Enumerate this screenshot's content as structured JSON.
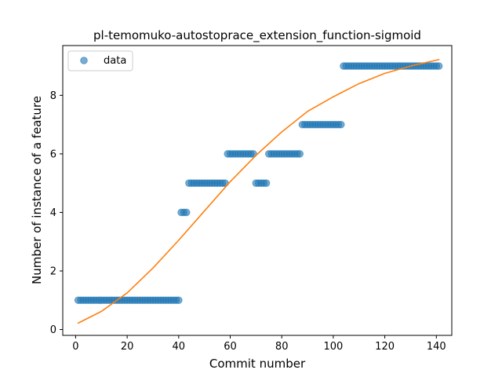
{
  "chart_data": {
    "type": "scatter",
    "title": "pl-temomuko-autostoprace_extension_function-sigmoid",
    "xlabel": "Commit number",
    "ylabel": "Number of instance of a feature",
    "xlim": [
      -5,
      146
    ],
    "ylim": [
      -0.2,
      9.7
    ],
    "x_ticks": [
      "0",
      "20",
      "40",
      "60",
      "80",
      "100",
      "120",
      "140"
    ],
    "y_ticks": [
      "0",
      "2",
      "4",
      "6",
      "8"
    ],
    "grid": false,
    "legend_position": "top-left",
    "legend": [
      {
        "label": "data",
        "color": "#1f77b4",
        "marker": "circle"
      }
    ],
    "series": [
      {
        "name": "data",
        "kind": "scatter",
        "color": "#1f77b4",
        "points": [
          [
            1,
            1
          ],
          [
            2,
            1
          ],
          [
            3,
            1
          ],
          [
            4,
            1
          ],
          [
            5,
            1
          ],
          [
            6,
            1
          ],
          [
            7,
            1
          ],
          [
            8,
            1
          ],
          [
            9,
            1
          ],
          [
            10,
            1
          ],
          [
            11,
            1
          ],
          [
            12,
            1
          ],
          [
            13,
            1
          ],
          [
            14,
            1
          ],
          [
            15,
            1
          ],
          [
            16,
            1
          ],
          [
            17,
            1
          ],
          [
            18,
            1
          ],
          [
            19,
            1
          ],
          [
            20,
            1
          ],
          [
            21,
            1
          ],
          [
            22,
            1
          ],
          [
            23,
            1
          ],
          [
            24,
            1
          ],
          [
            25,
            1
          ],
          [
            26,
            1
          ],
          [
            27,
            1
          ],
          [
            28,
            1
          ],
          [
            29,
            1
          ],
          [
            30,
            1
          ],
          [
            31,
            1
          ],
          [
            32,
            1
          ],
          [
            33,
            1
          ],
          [
            34,
            1
          ],
          [
            35,
            1
          ],
          [
            36,
            1
          ],
          [
            37,
            1
          ],
          [
            38,
            1
          ],
          [
            39,
            1
          ],
          [
            40,
            1
          ],
          [
            41,
            4
          ],
          [
            42,
            4
          ],
          [
            43,
            4
          ],
          [
            44,
            5
          ],
          [
            45,
            5
          ],
          [
            46,
            5
          ],
          [
            47,
            5
          ],
          [
            48,
            5
          ],
          [
            49,
            5
          ],
          [
            50,
            5
          ],
          [
            51,
            5
          ],
          [
            52,
            5
          ],
          [
            53,
            5
          ],
          [
            54,
            5
          ],
          [
            55,
            5
          ],
          [
            56,
            5
          ],
          [
            57,
            5
          ],
          [
            58,
            5
          ],
          [
            59,
            6
          ],
          [
            60,
            6
          ],
          [
            61,
            6
          ],
          [
            62,
            6
          ],
          [
            63,
            6
          ],
          [
            64,
            6
          ],
          [
            65,
            6
          ],
          [
            66,
            6
          ],
          [
            67,
            6
          ],
          [
            68,
            6
          ],
          [
            69,
            6
          ],
          [
            70,
            5
          ],
          [
            71,
            5
          ],
          [
            72,
            5
          ],
          [
            73,
            5
          ],
          [
            74,
            5
          ],
          [
            75,
            6
          ],
          [
            76,
            6
          ],
          [
            77,
            6
          ],
          [
            78,
            6
          ],
          [
            79,
            6
          ],
          [
            80,
            6
          ],
          [
            81,
            6
          ],
          [
            82,
            6
          ],
          [
            83,
            6
          ],
          [
            84,
            6
          ],
          [
            85,
            6
          ],
          [
            86,
            6
          ],
          [
            87,
            6
          ],
          [
            88,
            7
          ],
          [
            89,
            7
          ],
          [
            90,
            7
          ],
          [
            91,
            7
          ],
          [
            92,
            7
          ],
          [
            93,
            7
          ],
          [
            94,
            7
          ],
          [
            95,
            7
          ],
          [
            96,
            7
          ],
          [
            97,
            7
          ],
          [
            98,
            7
          ],
          [
            99,
            7
          ],
          [
            100,
            7
          ],
          [
            101,
            7
          ],
          [
            102,
            7
          ],
          [
            103,
            7
          ],
          [
            104,
            9
          ],
          [
            105,
            9
          ],
          [
            106,
            9
          ],
          [
            107,
            9
          ],
          [
            108,
            9
          ],
          [
            109,
            9
          ],
          [
            110,
            9
          ],
          [
            111,
            9
          ],
          [
            112,
            9
          ],
          [
            113,
            9
          ],
          [
            114,
            9
          ],
          [
            115,
            9
          ],
          [
            116,
            9
          ],
          [
            117,
            9
          ],
          [
            118,
            9
          ],
          [
            119,
            9
          ],
          [
            120,
            9
          ],
          [
            121,
            9
          ],
          [
            122,
            9
          ],
          [
            123,
            9
          ],
          [
            124,
            9
          ],
          [
            125,
            9
          ],
          [
            126,
            9
          ],
          [
            127,
            9
          ],
          [
            128,
            9
          ],
          [
            129,
            9
          ],
          [
            130,
            9
          ],
          [
            131,
            9
          ],
          [
            132,
            9
          ],
          [
            133,
            9
          ],
          [
            134,
            9
          ],
          [
            135,
            9
          ],
          [
            136,
            9
          ],
          [
            137,
            9
          ],
          [
            138,
            9
          ],
          [
            139,
            9
          ],
          [
            140,
            9
          ],
          [
            141,
            9
          ]
        ]
      },
      {
        "name": "",
        "kind": "line",
        "color": "#ff7f0e",
        "points": [
          [
            1,
            0.22
          ],
          [
            10,
            0.62
          ],
          [
            20,
            1.25
          ],
          [
            30,
            2.1
          ],
          [
            40,
            3.05
          ],
          [
            50,
            4.05
          ],
          [
            60,
            5.05
          ],
          [
            70,
            5.95
          ],
          [
            80,
            6.75
          ],
          [
            90,
            7.45
          ],
          [
            100,
            7.95
          ],
          [
            110,
            8.4
          ],
          [
            120,
            8.75
          ],
          [
            130,
            9.0
          ],
          [
            141,
            9.22
          ]
        ]
      }
    ]
  }
}
